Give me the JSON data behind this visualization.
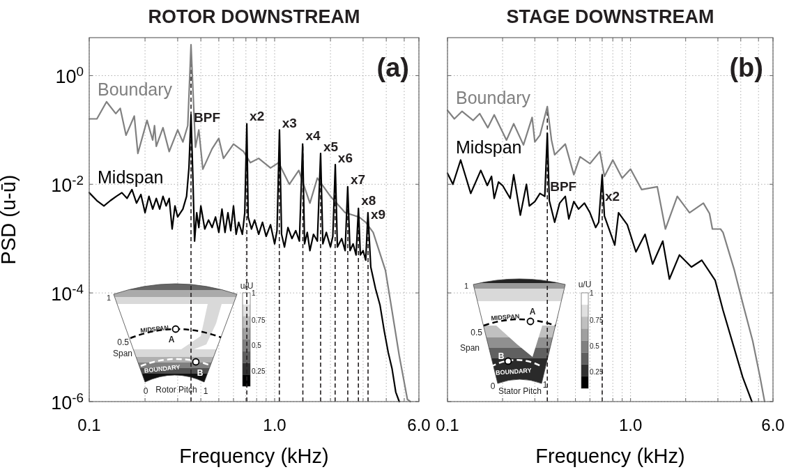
{
  "chart_data": [
    {
      "type": "line",
      "title": "ROTOR DOWNSTREAM",
      "xlabel": "Frequency (kHz)",
      "ylabel": "PSD (u-ū)",
      "log": "xy",
      "grid": true,
      "xlim": [
        0.1,
        6
      ],
      "ylim": [
        1e-06,
        5
      ],
      "xticks": [
        0.1,
        {
          "value": 0.2,
          "label": null
        },
        {
          "value": 0.3,
          "label": null
        },
        {
          "value": 0.4,
          "label": null
        },
        {
          "value": 0.5,
          "label": null
        },
        {
          "value": 0.6,
          "label": null
        },
        {
          "value": 0.7,
          "label": null
        },
        {
          "value": 0.8,
          "label": null
        },
        {
          "value": 0.9,
          "label": null
        },
        {
          "value": 1,
          "label": "1.0"
        },
        {
          "value": 2,
          "label": null
        },
        {
          "value": 3,
          "label": null
        },
        {
          "value": 4,
          "label": null
        },
        {
          "value": 5,
          "label": null
        },
        {
          "value": 6,
          "label": "6.0"
        }
      ],
      "yticks": [
        {
          "value": 1e-06,
          "label": "10$^{-6}$"
        },
        {
          "value": 0.0001,
          "label": "10$^{-4}$"
        },
        {
          "value": 0.01,
          "label": "10$^{-2}$"
        },
        {
          "value": 1,
          "label": "10$^{0}$"
        }
      ],
      "series": [
        {
          "name": "Boundary",
          "color": "#808080",
          "x": [
            0.1,
            0.11,
            0.124,
            0.139,
            0.147,
            0.158,
            0.175,
            0.183,
            0.205,
            0.22,
            0.225,
            0.23,
            0.25,
            0.27,
            0.3,
            0.32,
            0.34,
            0.354,
            0.374,
            0.39,
            0.41,
            0.46,
            0.5,
            0.53,
            0.6,
            0.68,
            0.74,
            0.82,
            0.95,
            1.05,
            1.2,
            1.35,
            1.55,
            1.7,
            2.0,
            2.4,
            2.85,
            3.1,
            3.4,
            3.96,
            4.3,
            4.7,
            5.2,
            5.4
          ],
          "values": [
            0.16,
            0.16,
            0.33,
            0.2,
            0.25,
            0.08,
            0.18,
            0.037,
            0.15,
            0.065,
            0.12,
            0.05,
            0.11,
            0.04,
            0.1,
            0.06,
            0.12,
            3.7,
            0.048,
            0.1,
            0.019,
            0.045,
            0.07,
            0.03,
            0.055,
            0.04,
            0.025,
            0.03,
            0.02,
            0.025,
            0.01,
            0.018,
            0.0045,
            0.013,
            0.006,
            0.003,
            0.0025,
            0.002,
            0.0013,
            0.00026,
            4.6e-05,
            7e-06,
            1.1e-06,
            1e-06
          ]
        },
        {
          "name": "Midspan",
          "color": "#000000",
          "x": [
            0.1,
            0.11,
            0.12,
            0.13,
            0.14,
            0.15,
            0.16,
            0.17,
            0.18,
            0.19,
            0.2,
            0.21,
            0.22,
            0.23,
            0.24,
            0.25,
            0.26,
            0.27,
            0.28,
            0.29,
            0.3,
            0.32,
            0.335,
            0.345,
            0.354,
            0.362,
            0.37,
            0.38,
            0.39,
            0.4,
            0.42,
            0.44,
            0.46,
            0.48,
            0.5,
            0.52,
            0.54,
            0.56,
            0.58,
            0.6,
            0.62,
            0.64,
            0.67,
            0.69,
            0.708,
            0.72,
            0.75,
            0.78,
            0.82,
            0.86,
            0.9,
            0.95,
            1.0,
            1.03,
            1.062,
            1.09,
            1.13,
            1.18,
            1.24,
            1.3,
            1.36,
            1.416,
            1.45,
            1.5,
            1.55,
            1.62,
            1.7,
            1.77,
            1.82,
            1.9,
            2.0,
            2.06,
            2.124,
            2.18,
            2.3,
            2.4,
            2.478,
            2.55,
            2.65,
            2.75,
            2.832,
            2.9,
            3.0,
            3.1,
            3.186,
            3.3,
            3.5,
            3.7,
            3.9,
            4.1,
            4.3,
            4.5,
            4.7
          ],
          "values": [
            0.007,
            0.005,
            0.004,
            0.005,
            0.006,
            0.007,
            0.0055,
            0.008,
            0.0045,
            0.0065,
            0.003,
            0.006,
            0.0035,
            0.0055,
            0.0035,
            0.006,
            0.004,
            0.0055,
            0.0015,
            0.004,
            0.0025,
            0.0035,
            0.006,
            0.02,
            0.19,
            0.015,
            0.0009,
            0.003,
            0.0016,
            0.004,
            0.0015,
            0.0022,
            0.0016,
            0.0025,
            0.0013,
            0.0035,
            0.0013,
            0.003,
            0.0014,
            0.004,
            0.0012,
            0.002,
            0.0012,
            0.003,
            0.13,
            0.0025,
            0.0015,
            0.0022,
            0.0012,
            0.002,
            0.0011,
            0.0018,
            0.0008,
            0.0014,
            0.1,
            0.0012,
            0.0007,
            0.0016,
            0.001,
            0.0014,
            0.0009,
            0.055,
            0.0008,
            0.0013,
            0.0006,
            0.0012,
            0.0009,
            0.037,
            0.0008,
            0.0013,
            0.0007,
            0.0011,
            0.023,
            0.0007,
            0.001,
            0.0006,
            0.009,
            0.0006,
            0.0008,
            0.0005,
            0.0036,
            0.0005,
            0.0006,
            0.0004,
            0.003,
            0.0003,
            0.00012,
            6e-05,
            2e-05,
            8e-06,
            4e-06,
            1.5e-06,
            1e-06
          ]
        }
      ],
      "ref_lines": [
        {
          "axis": "x",
          "value": 0.354,
          "line_style": "dashed"
        },
        {
          "axis": "x",
          "value": 0.708,
          "line_style": "dashed"
        },
        {
          "axis": "x",
          "value": 1.06,
          "line_style": "dashed"
        },
        {
          "axis": "x",
          "value": 1.42,
          "line_style": "dashed"
        },
        {
          "axis": "x",
          "value": 1.77,
          "line_style": "dashed"
        },
        {
          "axis": "x",
          "value": 2.12,
          "line_style": "dashed"
        },
        {
          "axis": "x",
          "value": 2.48,
          "line_style": "dashed"
        },
        {
          "axis": "x",
          "value": 2.83,
          "line_style": "dashed"
        },
        {
          "axis": "x",
          "value": 3.19,
          "line_style": "dashed"
        }
      ],
      "annotations": [
        "(a)",
        {
          "text": "BPF",
          "x": 0.354,
          "y": 0.14
        },
        {
          "text": "x2",
          "x": 0.708,
          "y": 0.15
        },
        {
          "text": "x3",
          "x": 1.06,
          "y": 0.11
        },
        {
          "text": "x4",
          "x": 1.42,
          "y": 0.065
        },
        {
          "text": "x5",
          "x": 1.77,
          "y": 0.04
        },
        {
          "text": "x6",
          "x": 2.12,
          "y": 0.025
        },
        {
          "text": "x7",
          "x": 2.48,
          "y": 0.01
        },
        {
          "text": "x8",
          "x": 2.83,
          "y": 0.0042
        },
        {
          "text": "x9",
          "x": 3.19,
          "y": 0.0023
        },
        "1",
        "0.5",
        "Span",
        "MIDSPAN",
        "A",
        "BOUNDARY",
        "B",
        "0",
        "Rotor Pitch",
        "1",
        "u/U",
        "1",
        "0.75",
        "0.5",
        "0.25"
      ]
    },
    {
      "type": "line",
      "title": "STAGE DOWNSTREAM",
      "xlabel": "Frequency (kHz)",
      "log": "xy",
      "grid": true,
      "tick_labels": "x",
      "xlim": [
        0.1,
        6
      ],
      "ylim": [
        1e-06,
        5
      ],
      "xticks": [
        0.1,
        {
          "value": 0.2,
          "label": null
        },
        {
          "value": 0.3,
          "label": null
        },
        {
          "value": 0.4,
          "label": null
        },
        {
          "value": 0.5,
          "label": null
        },
        {
          "value": 0.6,
          "label": null
        },
        {
          "value": 0.7,
          "label": null
        },
        {
          "value": 0.8,
          "label": null
        },
        {
          "value": 0.9,
          "label": null
        },
        {
          "value": 1,
          "label": "1.0"
        },
        {
          "value": 2,
          "label": null
        },
        {
          "value": 3,
          "label": null
        },
        {
          "value": 4,
          "label": null
        },
        {
          "value": 5,
          "label": null
        },
        {
          "value": 6,
          "label": "6.0"
        }
      ],
      "yticks": [
        1e-06,
        0.0001,
        0.01,
        1
      ],
      "series": [
        {
          "name": "Boundary",
          "color": "#808080",
          "x": [
            0.1,
            0.109,
            0.12,
            0.138,
            0.15,
            0.166,
            0.18,
            0.21,
            0.23,
            0.26,
            0.29,
            0.3,
            0.32,
            0.351,
            0.37,
            0.385,
            0.44,
            0.49,
            0.53,
            0.6,
            0.68,
            0.72,
            0.8,
            0.9,
            1.0,
            1.15,
            1.4,
            1.55,
            1.8,
            2.1,
            2.5,
            2.7,
            2.8,
            3.1,
            3.2,
            3.67,
            4.13,
            4.65,
            5.1,
            5.4
          ],
          "values": [
            0.23,
            0.16,
            0.22,
            0.15,
            0.2,
            0.11,
            0.19,
            0.065,
            0.13,
            0.053,
            0.17,
            0.06,
            0.08,
            0.27,
            0.065,
            0.035,
            0.055,
            0.015,
            0.032,
            0.024,
            0.04,
            0.014,
            0.028,
            0.013,
            0.019,
            0.008,
            0.009,
            0.0015,
            0.006,
            0.003,
            0.0045,
            0.0029,
            0.0015,
            0.0015,
            0.0013,
            0.00028,
            5.9e-05,
            1.3e-05,
            2.8e-06,
            1e-06
          ]
        },
        {
          "name": "Midspan",
          "color": "#000000",
          "x": [
            0.1,
            0.107,
            0.118,
            0.134,
            0.152,
            0.165,
            0.174,
            0.18,
            0.19,
            0.2,
            0.22,
            0.23,
            0.25,
            0.27,
            0.28,
            0.3,
            0.32,
            0.34,
            0.351,
            0.36,
            0.385,
            0.41,
            0.44,
            0.46,
            0.49,
            0.52,
            0.56,
            0.6,
            0.645,
            0.67,
            0.7,
            0.72,
            0.82,
            0.86,
            0.96,
            1.07,
            1.2,
            1.32,
            1.5,
            1.63,
            1.85,
            2.15,
            2.45,
            2.9,
            3.2,
            3.67,
            4.1,
            4.6
          ],
          "values": [
            0.016,
            0.01,
            0.028,
            0.0068,
            0.018,
            0.0095,
            0.014,
            0.0055,
            0.011,
            0.0095,
            0.0055,
            0.015,
            0.0027,
            0.01,
            0.004,
            0.0048,
            0.0068,
            0.006,
            0.087,
            0.005,
            0.002,
            0.0045,
            0.006,
            0.0023,
            0.0048,
            0.0035,
            0.0045,
            0.003,
            0.0016,
            0.002,
            0.015,
            0.0026,
            0.00076,
            0.003,
            0.0018,
            0.00057,
            0.0012,
            0.00034,
            0.0009,
            0.00018,
            0.0005,
            0.0003,
            0.0004,
            0.00017,
            4.8e-05,
            1e-05,
            2.8e-06,
            1e-06
          ]
        }
      ],
      "ref_lines": [
        {
          "axis": "x",
          "value": 0.351,
          "line_style": "dashed"
        },
        {
          "axis": "x",
          "value": 0.7,
          "line_style": "dashed"
        }
      ],
      "annotations": [
        "(b)",
        {
          "text": "BPF",
          "x": 0.351,
          "y": 0.0076
        },
        {
          "text": "x2",
          "x": 0.7,
          "y": 0.005
        },
        "1",
        "0.5",
        "Span",
        "MIDSPAN",
        "A",
        "BOUNDARY",
        "B",
        "0",
        "Stator Pitch",
        "1",
        "u/U",
        "1",
        "0.75",
        "0.5",
        "0.25"
      ]
    }
  ]
}
